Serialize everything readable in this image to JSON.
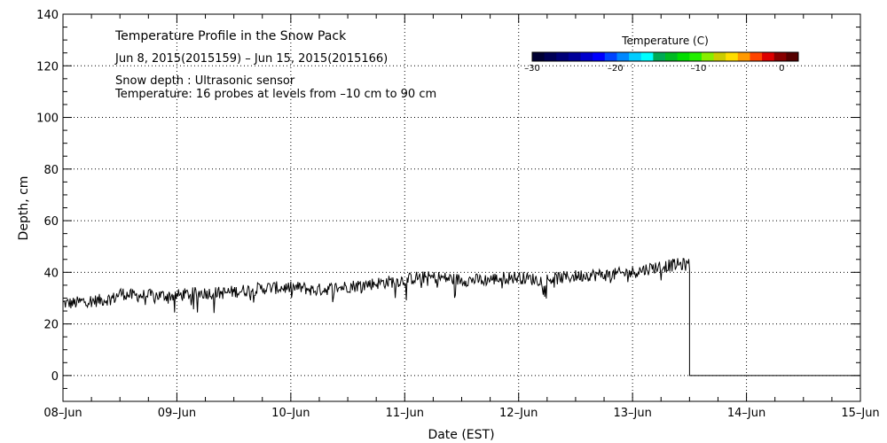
{
  "chart_data": {
    "type": "line",
    "title": "Temperature Profile in the Snow Pack",
    "subtitle": "Jun  8, 2015(2015159) – Jun 15, 2015(2015166)",
    "annotations": [
      "Snow depth : Ultrasonic sensor",
      "Temperature: 16 probes at levels from –10 cm to 90 cm"
    ],
    "xlabel": "Date (EST)",
    "ylabel": "Depth, cm",
    "xlim": [
      0,
      7
    ],
    "ylim": [
      -10,
      140
    ],
    "x_tick_values": [
      0,
      1,
      2,
      3,
      4,
      5,
      6,
      7
    ],
    "x_tick_labels": [
      "08–Jun",
      "09–Jun",
      "10–Jun",
      "11–Jun",
      "12–Jun",
      "13–Jun",
      "14–Jun",
      "15–Jun"
    ],
    "y_tick_values": [
      0,
      20,
      40,
      60,
      80,
      100,
      120,
      140
    ],
    "y_tick_labels": [
      "0",
      "20",
      "40",
      "60",
      "80",
      "100",
      "120",
      "140"
    ],
    "grid": true,
    "series": [
      {
        "name": "Snow depth",
        "x_unit": "days since 08-Jun",
        "x": [
          0,
          0.1,
          0.2,
          0.3,
          0.45,
          0.5,
          0.6,
          0.8,
          1.0,
          1.2,
          1.4,
          1.6,
          1.8,
          2.0,
          2.1,
          2.2,
          2.4,
          2.6,
          2.8,
          3.0,
          3.1,
          3.3,
          3.5,
          3.7,
          3.9,
          4.0,
          4.2,
          4.4,
          4.6,
          4.8,
          5.0,
          5.2,
          5.4,
          5.5,
          5.52,
          7.0
        ],
        "values": [
          28,
          28,
          29,
          29,
          30,
          32,
          31,
          31,
          31,
          32,
          32,
          33,
          34,
          34,
          34,
          33,
          34,
          35,
          36,
          37,
          38,
          38,
          37,
          37,
          38,
          38,
          37,
          38,
          39,
          39,
          40,
          42,
          43,
          43,
          0,
          0
        ],
        "noise_cm": 2.5,
        "color": "#000000"
      }
    ],
    "colorbar": {
      "title": "Temperature (C)",
      "range": [
        -30,
        2
      ],
      "tick_values": [
        -30,
        -20,
        -10,
        0
      ],
      "tick_labels": [
        "–30",
        "–20",
        "–10",
        "0"
      ],
      "colors": [
        "#000033",
        "#000055",
        "#000077",
        "#000099",
        "#0000cc",
        "#0000ff",
        "#0044ff",
        "#0088ff",
        "#00ccff",
        "#00ffff",
        "#00aa55",
        "#00bb22",
        "#00dd00",
        "#22ee00",
        "#88ee00",
        "#cccc00",
        "#ffdd00",
        "#ff9900",
        "#ff4400",
        "#dd0000",
        "#880000",
        "#550000"
      ]
    }
  }
}
